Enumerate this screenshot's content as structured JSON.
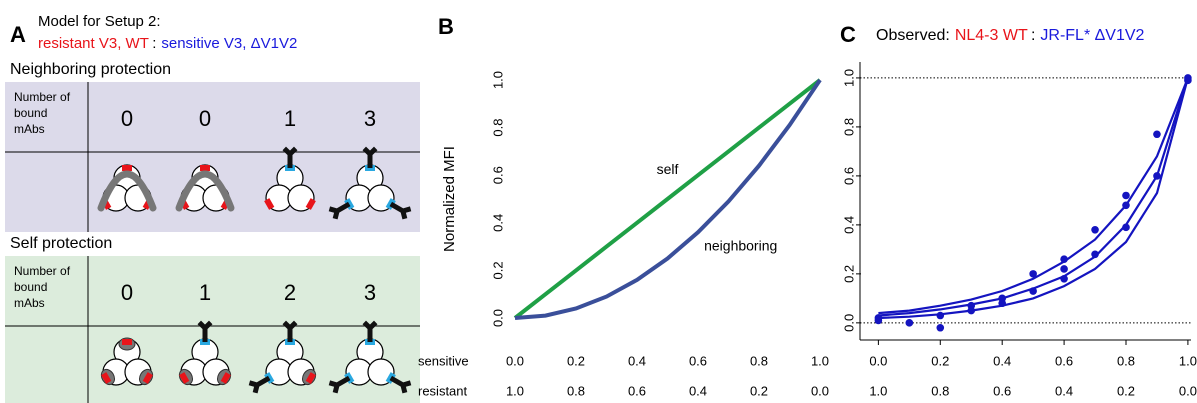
{
  "panel_a": {
    "label": "A",
    "title": "Model for Setup 2:",
    "legend": [
      {
        "text": "resistant V3, WT",
        "color": "#e8141a"
      },
      {
        "text": ":",
        "color": "#000000"
      },
      {
        "text": "sensitive V3, ΔV1V2",
        "color": "#1a1adc"
      }
    ],
    "tables": [
      {
        "title": "Neighboring protection",
        "title_color": "#2b3580",
        "fill": "#dcdaea",
        "header": [
          "Number of",
          "bound",
          "mAbs"
        ],
        "counts": [
          0,
          0,
          1,
          3
        ]
      },
      {
        "title": "Self protection",
        "title_color": "#2ca02c",
        "fill": "#dcecdc",
        "header": [
          "Number of",
          "bound",
          "mAbs"
        ],
        "counts": [
          0,
          1,
          2,
          3
        ]
      }
    ]
  },
  "chart_data": [
    {
      "type": "line",
      "label": "B",
      "ylabel": "Normalized MFI",
      "xlabel": "sensitive",
      "x2label": "resistant",
      "x": [
        0,
        0.1,
        0.2,
        0.3,
        0.4,
        0.5,
        0.6,
        0.7,
        0.8,
        0.9,
        1
      ],
      "series": [
        {
          "name": "self",
          "color": "#1fa046",
          "values": [
            0,
            0.1,
            0.2,
            0.3,
            0.4,
            0.5,
            0.6,
            0.7,
            0.8,
            0.9,
            1
          ]
        },
        {
          "name": "neighboring",
          "color": "#3a4f9a",
          "values": [
            0,
            0.01,
            0.04,
            0.09,
            0.16,
            0.25,
            0.36,
            0.49,
            0.64,
            0.81,
            1
          ]
        }
      ],
      "xlim": [
        0,
        1
      ],
      "ylim": [
        0,
        1
      ],
      "xticks": [
        {
          "value": 0,
          "label": "0.0"
        },
        {
          "value": 0.2,
          "label": "0.2"
        },
        {
          "value": 0.4,
          "label": "0.4"
        },
        {
          "value": 0.6,
          "label": "0.6"
        },
        {
          "value": 0.8,
          "label": "0.8"
        },
        {
          "value": 1,
          "label": "1.0"
        }
      ],
      "x2lim": [
        1,
        0
      ],
      "x2ticks": [
        {
          "value": 1,
          "label": "1.0"
        },
        {
          "value": 0.8,
          "label": "0.8"
        },
        {
          "value": 0.6,
          "label": "0.6"
        },
        {
          "value": 0.4,
          "label": "0.4"
        },
        {
          "value": 0.2,
          "label": "0.2"
        },
        {
          "value": 0,
          "label": "0.0"
        }
      ],
      "yticks": [
        {
          "value": 0,
          "label": "0.0"
        },
        {
          "value": 0.2,
          "label": "0.2"
        },
        {
          "value": 0.4,
          "label": "0.4"
        },
        {
          "value": 0.6,
          "label": "0.6"
        },
        {
          "value": 0.8,
          "label": "0.8"
        },
        {
          "value": 1,
          "label": "1.0"
        }
      ]
    },
    {
      "type": "scatter",
      "label": "C",
      "title": [
        {
          "text": "Observed:",
          "color": "#000000"
        },
        {
          "text": "NL4-3 WT",
          "color": "#e8141a"
        },
        {
          "text": ":",
          "color": "#000000"
        },
        {
          "text": "JR-FL* ΔV1V2",
          "color": "#1a1adc"
        }
      ],
      "color": "#1414c0",
      "points": {
        "x": [
          0,
          0,
          0.1,
          0.2,
          0.2,
          0.3,
          0.3,
          0.4,
          0.4,
          0.5,
          0.5,
          0.6,
          0.6,
          0.6,
          0.7,
          0.7,
          0.8,
          0.8,
          0.8,
          0.9,
          0.9,
          1,
          1
        ],
        "values": [
          0.01,
          0.02,
          0,
          -0.02,
          0.03,
          0.07,
          0.05,
          0.1,
          0.08,
          0.2,
          0.13,
          0.26,
          0.22,
          0.18,
          0.38,
          0.28,
          0.52,
          0.48,
          0.39,
          0.77,
          0.6,
          1,
          0.99
        ]
      },
      "x": [
        0,
        0.1,
        0.2,
        0.3,
        0.4,
        0.5,
        0.6,
        0.7,
        0.8,
        0.9,
        1
      ],
      "fits": [
        {
          "values": [
            0.04,
            0.05,
            0.07,
            0.095,
            0.13,
            0.18,
            0.25,
            0.34,
            0.48,
            0.68,
            1
          ]
        },
        {
          "values": [
            0.03,
            0.04,
            0.055,
            0.075,
            0.1,
            0.14,
            0.19,
            0.27,
            0.4,
            0.6,
            1
          ]
        },
        {
          "values": [
            0.02,
            0.025,
            0.035,
            0.05,
            0.07,
            0.1,
            0.15,
            0.22,
            0.33,
            0.53,
            1
          ]
        }
      ],
      "hlines": [
        0,
        1
      ],
      "xlim": [
        -0.04,
        1.01
      ],
      "ylim": [
        -0.07,
        1.065
      ],
      "xticks": [
        {
          "value": 0,
          "label": "0.0"
        },
        {
          "value": 0.2,
          "label": "0.2"
        },
        {
          "value": 0.4,
          "label": "0.4"
        },
        {
          "value": 0.6,
          "label": "0.6"
        },
        {
          "value": 0.8,
          "label": "0.8"
        },
        {
          "value": 1,
          "label": "1.0"
        }
      ],
      "x2lim": [
        1.04,
        -0.01
      ],
      "x2ticks": [
        {
          "value": 1,
          "label": "1.0"
        },
        {
          "value": 0.8,
          "label": "0.8"
        },
        {
          "value": 0.6,
          "label": "0.6"
        },
        {
          "value": 0.4,
          "label": "0.4"
        },
        {
          "value": 0.2,
          "label": "0.2"
        },
        {
          "value": 0,
          "label": "0.0"
        }
      ],
      "yticks": [
        {
          "value": 0,
          "label": "0.0"
        },
        {
          "value": 0.2,
          "label": "0.2"
        },
        {
          "value": 0.4,
          "label": "0.4"
        },
        {
          "value": 0.6,
          "label": "0.6"
        },
        {
          "value": 0.8,
          "label": "0.8"
        },
        {
          "value": 1,
          "label": "1.0"
        }
      ]
    }
  ]
}
